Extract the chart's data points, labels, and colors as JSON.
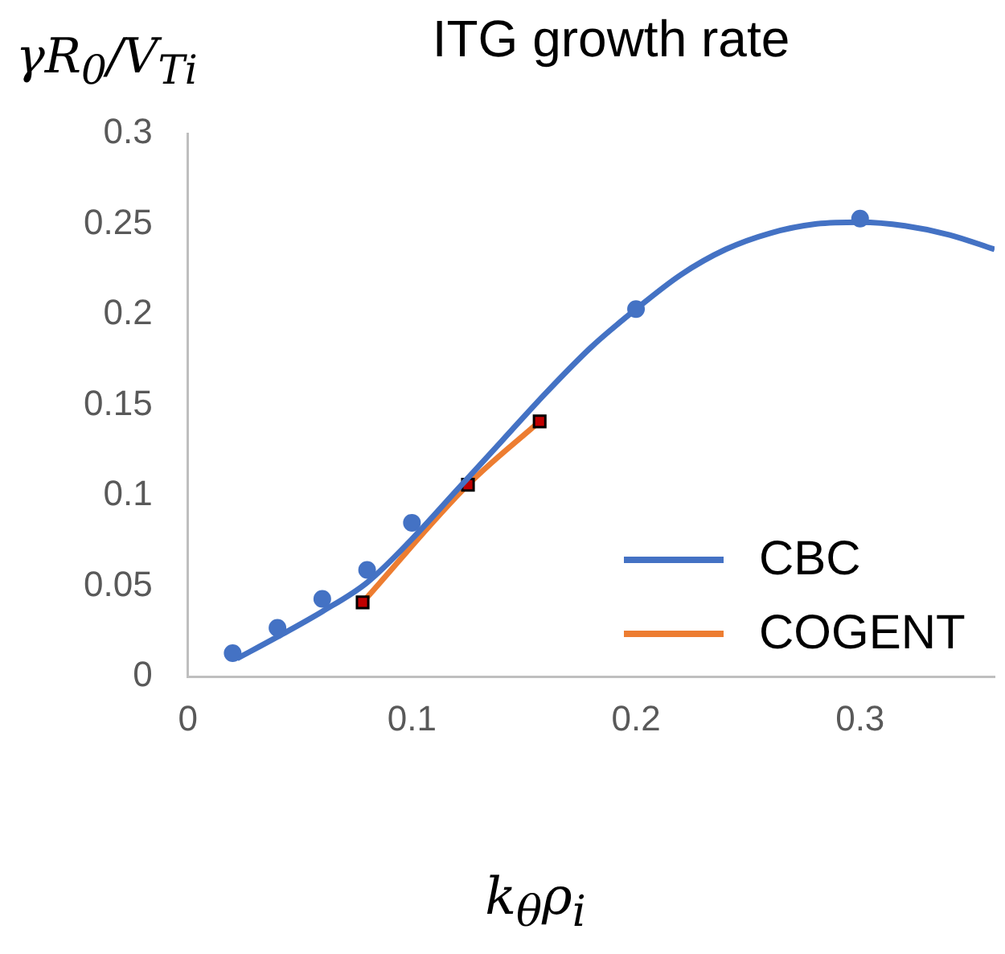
{
  "chart_data": {
    "type": "line",
    "title": "ITG growth rate",
    "xlabel": "k$_{θ}$ρ$_{i}$",
    "ylabel": "γR$_{0}$/V$_{Ti}$",
    "xlim": [
      0,
      0.36
    ],
    "xticks": [
      0,
      0.1,
      0.2,
      0.3
    ],
    "ylim": [
      0,
      0.3
    ],
    "yticks": [
      0,
      0.05,
      0.1,
      0.15,
      0.2,
      0.25,
      0.3
    ],
    "grid": false,
    "legend": "bottom right",
    "series": [
      {
        "type": "scatter",
        "marker": "circle",
        "color": "#4472c4",
        "x": [
          0.02,
          0.04,
          0.06,
          0.08,
          0.1,
          0.2,
          0.3
        ],
        "values": [
          0.013,
          0.027,
          0.043,
          0.059,
          0.085,
          0.203,
          0.253
        ]
      },
      {
        "name": "CBC",
        "marker": "none",
        "color": "#4472c4",
        "x": [
          0.022,
          0.04,
          0.06,
          0.08,
          0.1,
          0.12,
          0.14,
          0.16,
          0.18,
          0.2,
          0.22,
          0.24,
          0.26,
          0.28,
          0.3,
          0.32,
          0.34,
          0.36
        ],
        "values": [
          0.01,
          0.022,
          0.036,
          0.052,
          0.076,
          0.103,
          0.13,
          0.157,
          0.182,
          0.203,
          0.222,
          0.236,
          0.245,
          0.25,
          0.251,
          0.249,
          0.244,
          0.236
        ]
      },
      {
        "name": "COGENT",
        "marker": "square",
        "color": "#ed7d31",
        "x": [
          0.078,
          0.125,
          0.157
        ],
        "values": [
          0.041,
          0.106,
          0.141
        ]
      }
    ]
  }
}
